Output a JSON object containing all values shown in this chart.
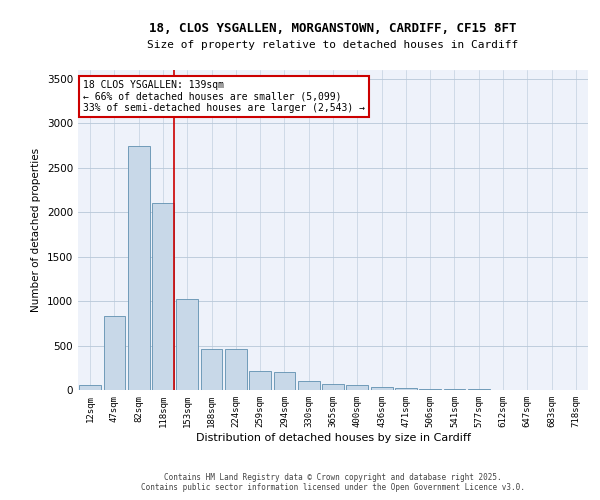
{
  "title_line1": "18, CLOS YSGALLEN, MORGANSTOWN, CARDIFF, CF15 8FT",
  "title_line2": "Size of property relative to detached houses in Cardiff",
  "xlabel": "Distribution of detached houses by size in Cardiff",
  "ylabel": "Number of detached properties",
  "bar_color": "#c8d8e8",
  "bar_edge_color": "#6090b0",
  "categories": [
    "12sqm",
    "47sqm",
    "82sqm",
    "118sqm",
    "153sqm",
    "188sqm",
    "224sqm",
    "259sqm",
    "294sqm",
    "330sqm",
    "365sqm",
    "400sqm",
    "436sqm",
    "471sqm",
    "506sqm",
    "541sqm",
    "577sqm",
    "612sqm",
    "647sqm",
    "683sqm",
    "718sqm"
  ],
  "values": [
    55,
    830,
    2750,
    2100,
    1020,
    460,
    460,
    210,
    200,
    100,
    70,
    55,
    35,
    20,
    15,
    10,
    8,
    5,
    3,
    2,
    2
  ],
  "ylim": [
    0,
    3600
  ],
  "yticks": [
    0,
    500,
    1000,
    1500,
    2000,
    2500,
    3000,
    3500
  ],
  "vline_bar_index": 3,
  "vline_color": "#cc0000",
  "annotation_text": "18 CLOS YSGALLEN: 139sqm\n← 66% of detached houses are smaller (5,099)\n33% of semi-detached houses are larger (2,543) →",
  "annotation_box_color": "#ffffff",
  "annotation_box_edge": "#cc0000",
  "background_color": "#eef2fa",
  "grid_color": "#b8c8d8",
  "footer_line1": "Contains HM Land Registry data © Crown copyright and database right 2025.",
  "footer_line2": "Contains public sector information licensed under the Open Government Licence v3.0."
}
